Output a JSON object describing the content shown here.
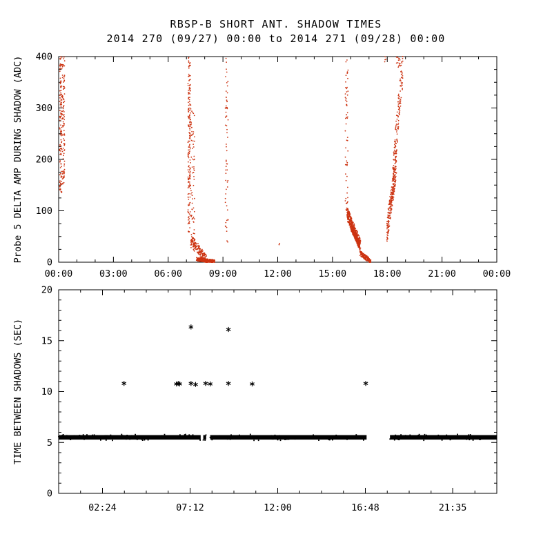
{
  "header": {
    "title": "RBSP-B SHORT ANT. SHADOW TIMES",
    "subtitle": "2014 270 (09/27) 00:00 to 2014 271 (09/28) 00:00"
  },
  "colors": {
    "background": "#ffffff",
    "axis": "#000000",
    "top_marker": "#cc3311",
    "bottom_marker": "#000000"
  },
  "chart_data": [
    {
      "id": "top",
      "type": "scatter",
      "title": "RBSP-B SHORT ANT. SHADOW TIMES",
      "subtitle": "2014 270 (09/27) 00:00 to 2014 271 (09/28) 00:00",
      "ylabel": "Probe 5 DELTA AMP DURING SHADOW (ADC)",
      "xlabel": "",
      "x_unit": "hours of day 2014-270",
      "xlim": [
        0,
        24
      ],
      "ylim": [
        0,
        400
      ],
      "grid": false,
      "legend": "none",
      "xticks": [
        {
          "v": 0,
          "label": "00:00"
        },
        {
          "v": 3,
          "label": "03:00"
        },
        {
          "v": 6,
          "label": "06:00"
        },
        {
          "v": 9,
          "label": "09:00"
        },
        {
          "v": 12,
          "label": "12:00"
        },
        {
          "v": 15,
          "label": "15:00"
        },
        {
          "v": 18,
          "label": "18:00"
        },
        {
          "v": 21,
          "label": "21:00"
        },
        {
          "v": 24,
          "label": "00:00"
        }
      ],
      "yticks": [
        {
          "v": 0,
          "label": "0"
        },
        {
          "v": 100,
          "label": "100"
        },
        {
          "v": 200,
          "label": "200"
        },
        {
          "v": 300,
          "label": "300"
        },
        {
          "v": 400,
          "label": "400"
        }
      ],
      "x_minor_step": 1,
      "y_minor_step": 25,
      "marker": "dot",
      "marker_color": "#cc3311",
      "clusters": [
        {
          "shape": "v",
          "x0": 0.05,
          "x1": 0.18,
          "y0": 135,
          "y1": 400,
          "n": 130
        },
        {
          "shape": "v",
          "x0": 0.2,
          "x1": 0.33,
          "y0": 150,
          "y1": 400,
          "n": 100
        },
        {
          "shape": "v",
          "x0": 7.08,
          "x1": 7.22,
          "y0": 55,
          "y1": 400,
          "n": 170
        },
        {
          "shape": "v",
          "x0": 7.2,
          "x1": 7.45,
          "y0": 20,
          "y1": 310,
          "n": 80
        },
        {
          "shape": "diag",
          "x0": 7.25,
          "x1": 8.1,
          "y0": 45,
          "y1": 3,
          "n": 160,
          "spread": 20
        },
        {
          "shape": "diag",
          "x0": 7.55,
          "x1": 8.55,
          "y0": 6,
          "y1": 1,
          "n": 280,
          "spread": 7
        },
        {
          "shape": "v",
          "x0": 9.13,
          "x1": 9.28,
          "y0": 35,
          "y1": 400,
          "n": 62
        },
        {
          "shape": "v",
          "x0": 12.05,
          "x1": 12.15,
          "y0": 32,
          "y1": 38,
          "n": 2
        },
        {
          "shape": "v",
          "x0": 15.7,
          "x1": 15.85,
          "y0": 100,
          "y1": 400,
          "n": 60
        },
        {
          "shape": "diag",
          "x0": 15.8,
          "x1": 16.55,
          "y0": 95,
          "y1": 30,
          "n": 320,
          "spread": 26
        },
        {
          "shape": "diag",
          "x0": 16.0,
          "x1": 16.45,
          "y0": 70,
          "y1": 35,
          "n": 240,
          "spread": 14
        },
        {
          "shape": "diag",
          "x0": 16.5,
          "x1": 17.1,
          "y0": 18,
          "y1": 1,
          "n": 140,
          "spread": 10
        },
        {
          "shape": "diag",
          "x0": 17.98,
          "x1": 18.5,
          "y0": 60,
          "y1": 190,
          "n": 230,
          "spread": 52
        },
        {
          "shape": "diag",
          "x0": 18.3,
          "x1": 18.85,
          "y0": 170,
          "y1": 380,
          "n": 140,
          "spread": 72
        },
        {
          "shape": "v",
          "x0": 18.5,
          "x1": 18.72,
          "y0": 375,
          "y1": 400,
          "n": 14
        },
        {
          "shape": "v",
          "x0": 17.86,
          "x1": 17.95,
          "y0": 385,
          "y1": 400,
          "n": 4
        }
      ]
    },
    {
      "id": "bottom",
      "type": "scatter",
      "ylabel": "TIME BETWEEN SHADOWS (SEC)",
      "xlabel": "",
      "x_unit": "hours of day 2014-270",
      "xlim": [
        0,
        24
      ],
      "ylim": [
        0,
        20
      ],
      "grid": false,
      "legend": "none",
      "xticks": [
        {
          "v": 2.4,
          "label": "02:24"
        },
        {
          "v": 7.2,
          "label": "07:12"
        },
        {
          "v": 12,
          "label": "12:00"
        },
        {
          "v": 16.8,
          "label": "16:48"
        },
        {
          "v": 21.5833,
          "label": "21:35"
        }
      ],
      "yticks": [
        {
          "v": 0,
          "label": "0"
        },
        {
          "v": 5,
          "label": "5"
        },
        {
          "v": 10,
          "label": "10"
        },
        {
          "v": 15,
          "label": "15"
        },
        {
          "v": 20,
          "label": "20"
        }
      ],
      "x_minor_step": 1.2,
      "y_minor_step": 1,
      "marker": "asterisk",
      "marker_color": "#000000",
      "band": {
        "y": 5.5,
        "half_thickness": 0.22,
        "fuzz": 0.3,
        "segments": [
          [
            0.0,
            7.78
          ],
          [
            7.92,
            8.08
          ],
          [
            8.3,
            16.87
          ],
          [
            18.15,
            24.0
          ]
        ]
      },
      "outliers": [
        {
          "x": 3.58,
          "y": 10.8
        },
        {
          "x": 6.45,
          "y": 10.75
        },
        {
          "x": 6.55,
          "y": 10.8
        },
        {
          "x": 6.63,
          "y": 10.75
        },
        {
          "x": 7.25,
          "y": 10.8
        },
        {
          "x": 7.5,
          "y": 10.7
        },
        {
          "x": 8.05,
          "y": 10.8
        },
        {
          "x": 8.3,
          "y": 10.75
        },
        {
          "x": 9.3,
          "y": 10.8
        },
        {
          "x": 10.6,
          "y": 10.75
        },
        {
          "x": 16.82,
          "y": 10.8
        },
        {
          "x": 7.25,
          "y": 16.35
        },
        {
          "x": 9.3,
          "y": 16.1
        }
      ]
    }
  ]
}
